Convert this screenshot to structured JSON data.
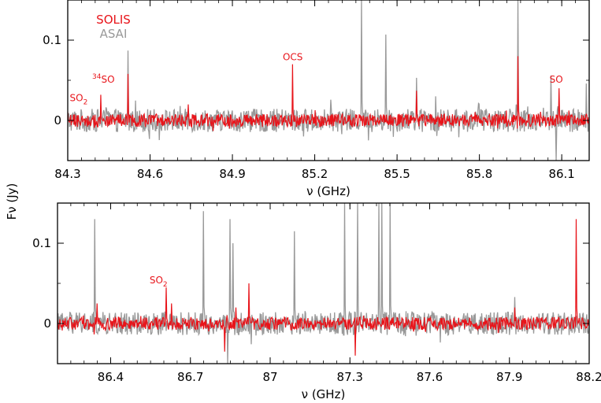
{
  "ylabel": "Fν (Jy)",
  "colors": {
    "SOLIS": "#e8141a",
    "ASAI": "#999999"
  },
  "chart_data": [
    {
      "type": "line",
      "xlabel": "ν (GHz)",
      "xlim": [
        84.3,
        86.2
      ],
      "ylim": [
        -0.05,
        0.15
      ],
      "xticks": [
        "84.3",
        "84.6",
        "84.9",
        "85.2",
        "85.5",
        "85.8",
        "86.1"
      ],
      "xtick_values": [
        84.3,
        84.6,
        84.9,
        85.2,
        85.5,
        85.8,
        86.1
      ],
      "yticks": [
        "0",
        "0.1"
      ],
      "ytick_values": [
        0,
        0.1
      ],
      "legend": [
        {
          "name": "SOLIS",
          "color": "#e8141a"
        },
        {
          "name": "ASAI",
          "color": "#999999"
        }
      ],
      "annotations": [
        {
          "text": "SO",
          "sub": "2",
          "sup": "",
          "x": 84.34,
          "y": 0.024
        },
        {
          "text": "SO",
          "sub": "",
          "sup": "34",
          "x": 84.43,
          "y": 0.047
        },
        {
          "text": "OCS",
          "sub": "",
          "sup": "",
          "x": 85.12,
          "y": 0.075
        },
        {
          "text": "SO",
          "sub": "",
          "sup": "",
          "x": 86.08,
          "y": 0.047
        }
      ],
      "series": [
        {
          "name": "ASAI",
          "color": "#999999",
          "noise": 0.009,
          "peaks": [
            {
              "x": 84.52,
              "y": 0.087
            },
            {
              "x": 84.71,
              "y": 0.018
            },
            {
              "x": 85.16,
              "y": -0.02
            },
            {
              "x": 85.37,
              "y": 0.15
            },
            {
              "x": 85.46,
              "y": 0.107
            },
            {
              "x": 85.57,
              "y": 0.053
            },
            {
              "x": 85.64,
              "y": 0.03
            },
            {
              "x": 85.94,
              "y": 0.15
            },
            {
              "x": 86.06,
              "y": 0.056
            },
            {
              "x": 86.08,
              "y": -0.05
            },
            {
              "x": 86.19,
              "y": 0.046
            }
          ]
        },
        {
          "name": "SOLIS",
          "color": "#e8141a",
          "noise": 0.005,
          "peaks": [
            {
              "x": 84.42,
              "y": 0.032
            },
            {
              "x": 84.52,
              "y": 0.058
            },
            {
              "x": 84.74,
              "y": 0.02
            },
            {
              "x": 85.12,
              "y": 0.07
            },
            {
              "x": 85.57,
              "y": 0.037
            },
            {
              "x": 85.94,
              "y": 0.08
            },
            {
              "x": 86.09,
              "y": 0.04
            }
          ]
        }
      ]
    },
    {
      "type": "line",
      "xlabel": "ν (GHz)",
      "xlim": [
        86.2,
        88.2
      ],
      "ylim": [
        -0.05,
        0.15
      ],
      "xticks": [
        "86.4",
        "86.7",
        "87",
        "87.3",
        "87.6",
        "87.9",
        "88.2"
      ],
      "xtick_values": [
        86.4,
        86.7,
        87.0,
        87.3,
        87.6,
        87.9,
        88.2
      ],
      "yticks": [
        "0",
        "0.1"
      ],
      "ytick_values": [
        0,
        0.1
      ],
      "annotations": [
        {
          "text": "SO",
          "sub": "2",
          "sup": "",
          "x": 86.58,
          "y": 0.05
        }
      ],
      "series": [
        {
          "name": "ASAI",
          "color": "#999999",
          "noise": 0.009,
          "peaks": [
            {
              "x": 86.34,
              "y": 0.13
            },
            {
              "x": 86.75,
              "y": 0.14
            },
            {
              "x": 86.85,
              "y": 0.13
            },
            {
              "x": 86.86,
              "y": 0.1
            },
            {
              "x": 86.84,
              "y": -0.05
            },
            {
              "x": 87.09,
              "y": 0.115
            },
            {
              "x": 87.28,
              "y": 0.15
            },
            {
              "x": 87.33,
              "y": 0.15
            },
            {
              "x": 87.41,
              "y": 0.15
            },
            {
              "x": 87.42,
              "y": 0.15
            },
            {
              "x": 87.45,
              "y": 0.15
            },
            {
              "x": 87.92,
              "y": 0.033
            }
          ]
        },
        {
          "name": "SOLIS",
          "color": "#e8141a",
          "noise": 0.005,
          "peaks": [
            {
              "x": 86.35,
              "y": 0.025
            },
            {
              "x": 86.61,
              "y": 0.045
            },
            {
              "x": 86.63,
              "y": 0.025
            },
            {
              "x": 86.83,
              "y": -0.035
            },
            {
              "x": 86.87,
              "y": 0.02
            },
            {
              "x": 86.92,
              "y": 0.05
            },
            {
              "x": 87.32,
              "y": -0.04
            },
            {
              "x": 87.92,
              "y": 0.02
            },
            {
              "x": 88.15,
              "y": 0.13
            }
          ]
        }
      ]
    }
  ]
}
